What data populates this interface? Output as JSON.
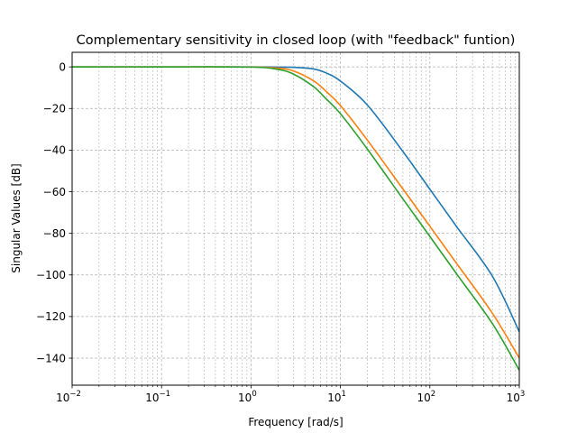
{
  "chart_data": {
    "type": "line",
    "title": "Complementary sensitivity in closed loop (with \"feedback\" funtion)",
    "xlabel": "Frequency [rad/s]",
    "ylabel": "Singular Values [dB]",
    "xscale": "log",
    "xlim": [
      0.01,
      1000
    ],
    "ylim": [
      -153,
      7
    ],
    "grid": true,
    "x_ticks": [
      {
        "base": "10",
        "exp": "−2",
        "value": 0.01
      },
      {
        "base": "10",
        "exp": "−1",
        "value": 0.1
      },
      {
        "base": "10",
        "exp": "0",
        "value": 1
      },
      {
        "base": "10",
        "exp": "1",
        "value": 10
      },
      {
        "base": "10",
        "exp": "2",
        "value": 100
      },
      {
        "base": "10",
        "exp": "3",
        "value": 1000
      }
    ],
    "y_ticks": [
      {
        "label": "0",
        "value": 0
      },
      {
        "label": "−20",
        "value": -20
      },
      {
        "label": "−40",
        "value": -40
      },
      {
        "label": "−60",
        "value": -60
      },
      {
        "label": "−80",
        "value": -80
      },
      {
        "label": "−100",
        "value": -100
      },
      {
        "label": "−120",
        "value": -120
      },
      {
        "label": "−140",
        "value": -140
      }
    ],
    "x": [
      0.01,
      0.1,
      1,
      2,
      3,
      5,
      7,
      10,
      20,
      50,
      100,
      200,
      500,
      1000
    ],
    "series": [
      {
        "color": "#1f77b4",
        "values": [
          0,
          0,
          0,
          -0.1,
          -0.2,
          -1.0,
          -3.0,
          -6.8,
          -18.3,
          -40.7,
          -58.8,
          -76.9,
          -100.6,
          -127.3
        ]
      },
      {
        "color": "#ff7f0e",
        "values": [
          0,
          0,
          -0.05,
          -0.6,
          -2.0,
          -6.7,
          -12.0,
          -18.6,
          -35.2,
          -58.7,
          -76.6,
          -94.6,
          -118.4,
          -140.0
        ]
      },
      {
        "color": "#2ca02c",
        "values": [
          0,
          0,
          -0.1,
          -1.2,
          -3.5,
          -9.5,
          -15.6,
          -22.5,
          -39.5,
          -63.5,
          -81.5,
          -99.6,
          -123.4,
          -145.8
        ]
      }
    ]
  }
}
